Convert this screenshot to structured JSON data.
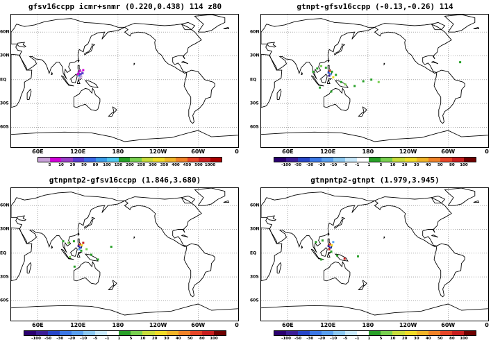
{
  "chart_data": [
    {
      "type": "heatmap",
      "title": "gfsv16ccpp icmr+snmr (0.220,0.438) 114 z80",
      "x_tick_labels": [
        "60E",
        "120E",
        "180",
        "120W",
        "60W",
        "0"
      ],
      "y_tick_labels": [
        "60N",
        "30N",
        "EQ",
        "30S",
        "60S"
      ],
      "grid": true,
      "colorbar": {
        "labels": [
          "5",
          "10",
          "20",
          "50",
          "80",
          "100",
          "150",
          "200",
          "250",
          "300",
          "350",
          "400",
          "450",
          "500",
          "1000"
        ],
        "colors": [
          "#c8a0d8",
          "#d100d8",
          "#9a40c8",
          "#5a3cd0",
          "#3c68e6",
          "#3c9ce8",
          "#50c8f0",
          "#28a028",
          "#78d050",
          "#c8dc3c",
          "#f0dc28",
          "#f0b428",
          "#f08228",
          "#e64628",
          "#c81e1e",
          "#aa0000"
        ]
      },
      "features": [
        {
          "lon": 121,
          "lat": 9,
          "color": "#9a40c8"
        },
        {
          "lon": 123,
          "lat": 11,
          "color": "#d100d8"
        },
        {
          "lon": 124,
          "lat": 7,
          "color": "#5a3cd0"
        },
        {
          "lon": 126,
          "lat": 10,
          "color": "#c8a0d8"
        },
        {
          "lon": 122,
          "lat": 5,
          "color": "#3c68e6"
        },
        {
          "lon": 125,
          "lat": 4,
          "color": "#c8a0d8"
        },
        {
          "lon": 120,
          "lat": 7,
          "color": "#d100d8"
        },
        {
          "lon": 127,
          "lat": 8,
          "color": "#5a3cd0"
        },
        {
          "lon": 123,
          "lat": 2,
          "color": "#c8a0d8"
        },
        {
          "lon": 128,
          "lat": 12,
          "color": "#d100d8"
        }
      ]
    },
    {
      "type": "heatmap",
      "title": "gtnpt-gfsv16ccpp (-0.13,-0.26) 114",
      "x_tick_labels": [
        "60E",
        "120E",
        "180",
        "120W",
        "60W",
        "0"
      ],
      "y_tick_labels": [
        "60N",
        "30N",
        "EQ",
        "30S",
        "60S"
      ],
      "grid": true,
      "colorbar": {
        "labels": [
          "-100",
          "-50",
          "-30",
          "-20",
          "-10",
          "-5",
          "-1",
          "1",
          "5",
          "10",
          "20",
          "30",
          "40",
          "50",
          "80",
          "100"
        ],
        "colors": [
          "#2a006e",
          "#3c1e96",
          "#2846c8",
          "#3c78e6",
          "#5aa0f0",
          "#8cc8f0",
          "#c8e8fa",
          "#ffffff",
          "#28a028",
          "#78d050",
          "#c8dc3c",
          "#f0dc28",
          "#f0b428",
          "#f08228",
          "#e64628",
          "#c81e1e",
          "#6e0000"
        ]
      },
      "features": [
        {
          "lon": 98,
          "lat": 10,
          "color": "#28a028"
        },
        {
          "lon": 104,
          "lat": 14,
          "color": "#28a028"
        },
        {
          "lon": 110,
          "lat": 17,
          "color": "#78d050"
        },
        {
          "lon": 117,
          "lat": 15,
          "color": "#28a028"
        },
        {
          "lon": 121,
          "lat": 9,
          "color": "#2846c8"
        },
        {
          "lon": 123,
          "lat": 11,
          "color": "#e64628"
        },
        {
          "lon": 124,
          "lat": 7,
          "color": "#5aa0f0"
        },
        {
          "lon": 126,
          "lat": 10,
          "color": "#28a028"
        },
        {
          "lon": 122,
          "lat": 5,
          "color": "#3c1e96"
        },
        {
          "lon": 128,
          "lat": 3,
          "color": "#f0dc28"
        },
        {
          "lon": 132,
          "lat": 6,
          "color": "#28a028"
        },
        {
          "lon": 140,
          "lat": -3,
          "color": "#28a028"
        },
        {
          "lon": 146,
          "lat": -6,
          "color": "#78d050"
        },
        {
          "lon": 160,
          "lat": -8,
          "color": "#28a028"
        },
        {
          "lon": 173,
          "lat": -2,
          "color": "#28a028"
        },
        {
          "lon": 185,
          "lat": 0,
          "color": "#28a028"
        },
        {
          "lon": 196,
          "lat": -3,
          "color": "#78d050"
        },
        {
          "lon": 108,
          "lat": -10,
          "color": "#28a028"
        },
        {
          "lon": 125,
          "lat": -15,
          "color": "#28a028"
        },
        {
          "lon": 318,
          "lat": 22,
          "color": "#28a028"
        }
      ]
    },
    {
      "type": "heatmap",
      "title": "gtnpntp2-gfsv16ccpp (1.846,3.680)",
      "x_tick_labels": [
        "60E",
        "120E",
        "180",
        "120W",
        "60W",
        "0"
      ],
      "y_tick_labels": [
        "60N",
        "30N",
        "EQ",
        "30S",
        "60S"
      ],
      "grid": true,
      "colorbar": {
        "labels": [
          "-100",
          "-50",
          "-30",
          "-20",
          "-10",
          "-5",
          "-1",
          "1",
          "5",
          "10",
          "20",
          "30",
          "40",
          "50",
          "80",
          "100"
        ],
        "colors": [
          "#2a006e",
          "#3c1e96",
          "#2846c8",
          "#3c78e6",
          "#5aa0f0",
          "#8cc8f0",
          "#c8e8fa",
          "#ffffff",
          "#28a028",
          "#78d050",
          "#c8dc3c",
          "#f0dc28",
          "#f0b428",
          "#f08228",
          "#e64628",
          "#c81e1e",
          "#6e0000"
        ]
      },
      "features": [
        {
          "lon": 98,
          "lat": 15,
          "color": "#28a028"
        },
        {
          "lon": 106,
          "lat": 13,
          "color": "#78d050"
        },
        {
          "lon": 114,
          "lat": 15,
          "color": "#28a028"
        },
        {
          "lon": 121,
          "lat": 9,
          "color": "#3c1e96"
        },
        {
          "lon": 123,
          "lat": 11,
          "color": "#e64628"
        },
        {
          "lon": 124,
          "lat": 7,
          "color": "#2846c8"
        },
        {
          "lon": 126,
          "lat": 10,
          "color": "#f0dc28"
        },
        {
          "lon": 122,
          "lat": 5,
          "color": "#5aa0f0"
        },
        {
          "lon": 128,
          "lat": 13,
          "color": "#c81e1e"
        },
        {
          "lon": 125,
          "lat": 3,
          "color": "#28a028"
        },
        {
          "lon": 133,
          "lat": 5,
          "color": "#78d050"
        },
        {
          "lon": 140,
          "lat": -2,
          "color": "#28a028"
        },
        {
          "lon": 150,
          "lat": -8,
          "color": "#28a028"
        },
        {
          "lon": 170,
          "lat": 8,
          "color": "#28a028"
        },
        {
          "lon": 115,
          "lat": -17,
          "color": "#28a028"
        },
        {
          "lon": 108,
          "lat": -5,
          "color": "#78d050"
        }
      ]
    },
    {
      "type": "heatmap",
      "title": "gtnpntp2-gtnpt (1.979,3.945)",
      "x_tick_labels": [
        "60E",
        "120E",
        "180",
        "120W",
        "60W",
        "0"
      ],
      "y_tick_labels": [
        "60N",
        "30N",
        "EQ",
        "30S",
        "60S"
      ],
      "grid": true,
      "colorbar": {
        "labels": [
          "-100",
          "-50",
          "-30",
          "-20",
          "-10",
          "-5",
          "-1",
          "1",
          "5",
          "10",
          "20",
          "30",
          "40",
          "50",
          "80",
          "100"
        ],
        "colors": [
          "#2a006e",
          "#3c1e96",
          "#2846c8",
          "#3c78e6",
          "#5aa0f0",
          "#8cc8f0",
          "#c8e8fa",
          "#ffffff",
          "#28a028",
          "#78d050",
          "#c8dc3c",
          "#f0dc28",
          "#f0b428",
          "#f08228",
          "#e64628",
          "#c81e1e",
          "#6e0000"
        ]
      },
      "features": [
        {
          "lon": 102,
          "lat": 14,
          "color": "#28a028"
        },
        {
          "lon": 112,
          "lat": 16,
          "color": "#28a028"
        },
        {
          "lon": 121,
          "lat": 9,
          "color": "#3c1e96"
        },
        {
          "lon": 123,
          "lat": 11,
          "color": "#e64628"
        },
        {
          "lon": 124,
          "lat": 7,
          "color": "#2846c8"
        },
        {
          "lon": 126,
          "lat": 10,
          "color": "#f0dc28"
        },
        {
          "lon": 122,
          "lat": 5,
          "color": "#c81e1e"
        },
        {
          "lon": 128,
          "lat": 14,
          "color": "#5aa0f0"
        },
        {
          "lon": 125,
          "lat": 2,
          "color": "#28a028"
        },
        {
          "lon": 134,
          "lat": -3,
          "color": "#28a028"
        },
        {
          "lon": 145,
          "lat": -7,
          "color": "#c81e1e"
        },
        {
          "lon": 110,
          "lat": -8,
          "color": "#28a028"
        },
        {
          "lon": 165,
          "lat": -4,
          "color": "#28a028"
        }
      ]
    }
  ]
}
